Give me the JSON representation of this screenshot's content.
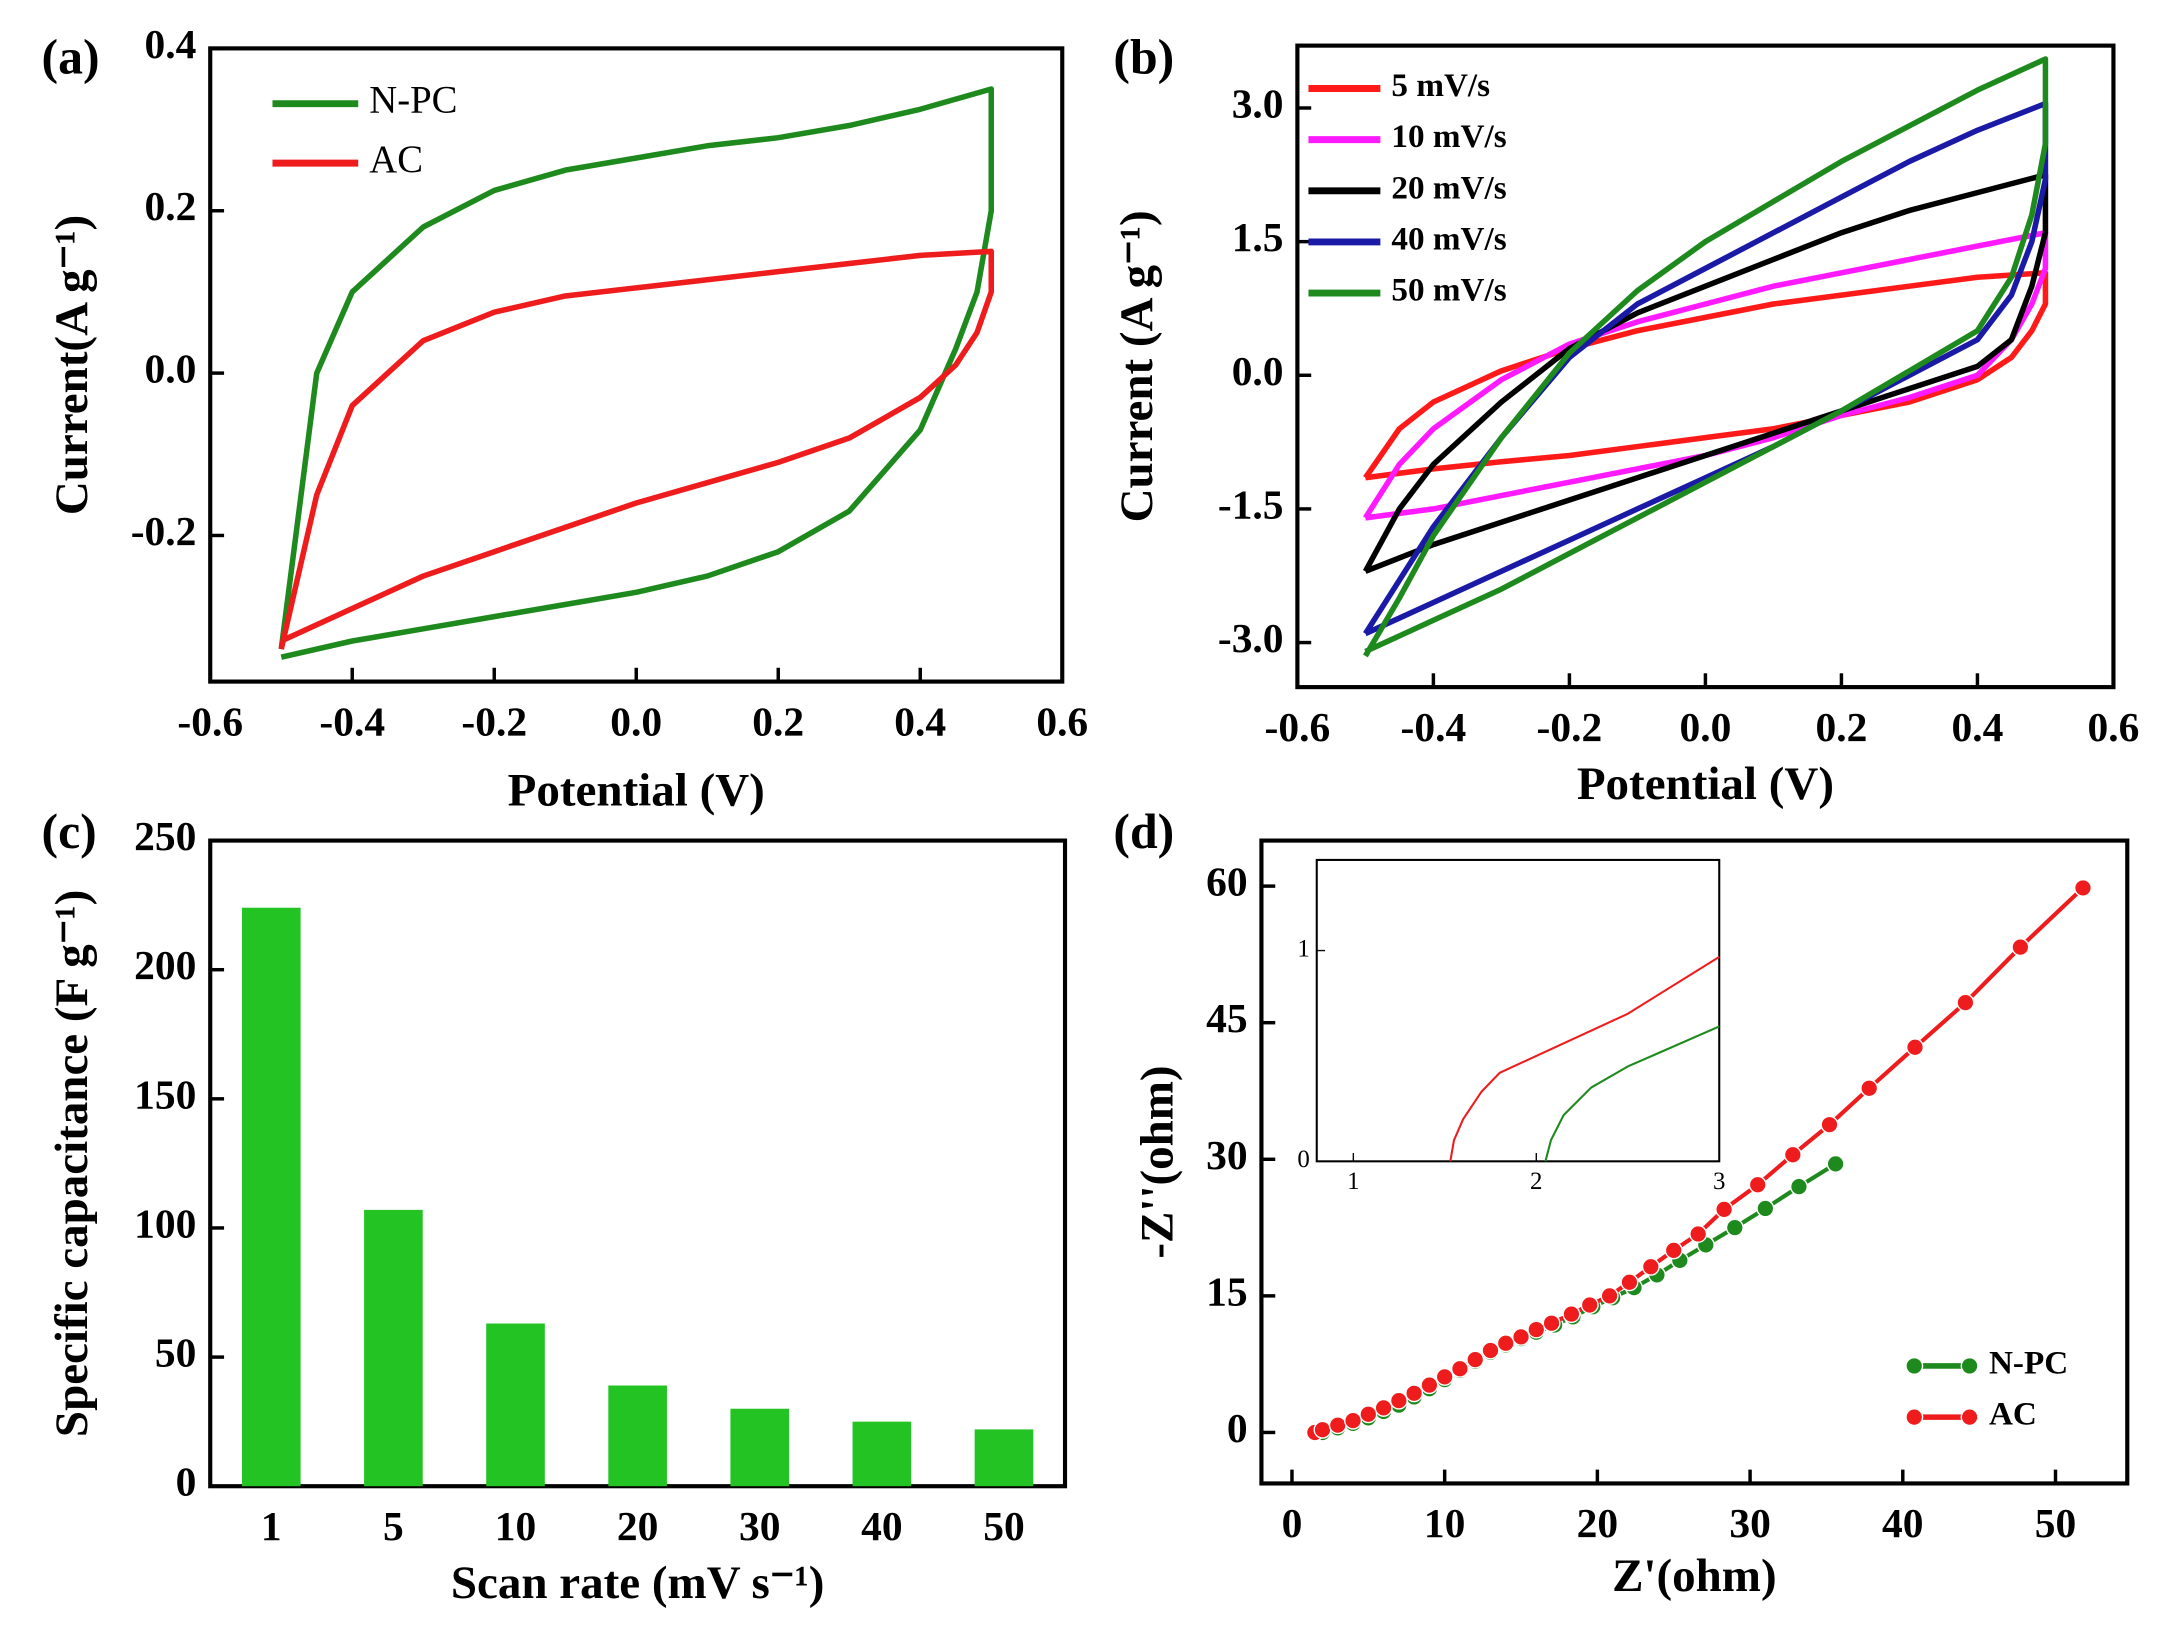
{
  "chart_data": [
    {
      "type": "line",
      "panel_label": "(a)",
      "xlabel": "Potential (V)",
      "ylabel": "Current(A g⁻¹)",
      "legend": "upper left",
      "xlim": [
        -0.6,
        0.6
      ],
      "xticks": [
        -0.6,
        -0.4,
        -0.2,
        {
          "value": 0,
          "label": "0.0"
        },
        0.2,
        0.4,
        0.6
      ],
      "ylim": [
        -0.38,
        0.4
      ],
      "yticks": [
        -0.2,
        {
          "value": 0,
          "label": "0.0"
        },
        0.2,
        0.4
      ],
      "x": [
        -0.5,
        -0.45,
        -0.4,
        -0.3,
        -0.2,
        -0.1,
        0,
        0.1,
        0.2,
        0.3,
        0.4,
        0.5,
        0.5,
        0.48,
        0.45,
        0.4,
        0.3,
        0.2,
        0.1,
        0,
        -0.1,
        -0.2,
        -0.3,
        -0.4,
        -0.5
      ],
      "series": [
        {
          "name": "N-PC",
          "color": "#1e8a1e",
          "values": [
            -0.34,
            0.0,
            0.1,
            0.18,
            0.225,
            0.25,
            0.265,
            0.28,
            0.29,
            0.305,
            0.325,
            0.35,
            0.2,
            0.1,
            0.03,
            -0.07,
            -0.17,
            -0.22,
            -0.25,
            -0.27,
            -0.285,
            -0.3,
            -0.315,
            -0.33,
            -0.35
          ]
        },
        {
          "name": "AC",
          "color": "#ee1c1c",
          "values": [
            -0.34,
            -0.15,
            -0.04,
            0.04,
            0.075,
            0.095,
            0.105,
            0.115,
            0.125,
            0.135,
            0.145,
            0.15,
            0.1,
            0.05,
            0.01,
            -0.03,
            -0.08,
            -0.11,
            -0.135,
            -0.16,
            -0.19,
            -0.22,
            -0.25,
            -0.29,
            -0.33
          ]
        }
      ]
    },
    {
      "type": "line",
      "panel_label": "(b)",
      "xlabel": "Potential (V)",
      "ylabel": "Current (A g⁻¹)",
      "legend": "upper left",
      "xlim": [
        -0.6,
        0.6
      ],
      "xticks": [
        -0.6,
        -0.4,
        -0.2,
        {
          "value": 0,
          "label": "0.0"
        },
        0.2,
        0.4,
        0.6
      ],
      "ylim": [
        -3.5,
        3.7
      ],
      "yticks": [
        {
          "value": -3,
          "label": "-3.0"
        },
        -1.5,
        {
          "value": 0,
          "label": "0.0"
        },
        1.5,
        {
          "value": 3,
          "label": "3.0"
        }
      ],
      "x": [
        -0.5,
        -0.45,
        -0.4,
        -0.3,
        -0.2,
        -0.1,
        0,
        0.1,
        0.2,
        0.3,
        0.4,
        0.5,
        0.5,
        0.48,
        0.45,
        0.4,
        0.3,
        0.2,
        0.1,
        0,
        -0.1,
        -0.2,
        -0.3,
        -0.4,
        -0.5
      ],
      "series": [
        {
          "name": "5 mV/s",
          "color": "#ff1a1a",
          "values": [
            -1.15,
            -0.6,
            -0.3,
            0.05,
            0.3,
            0.5,
            0.65,
            0.8,
            0.9,
            1.0,
            1.1,
            1.15,
            0.8,
            0.5,
            0.2,
            -0.05,
            -0.3,
            -0.45,
            -0.6,
            -0.7,
            -0.8,
            -0.9,
            -0.97,
            -1.05,
            -1.15
          ]
        },
        {
          "name": "10 mV/s",
          "color": "#ff1aff",
          "values": [
            -1.6,
            -1.0,
            -0.6,
            -0.05,
            0.35,
            0.6,
            0.8,
            1.0,
            1.15,
            1.3,
            1.45,
            1.6,
            1.2,
            0.8,
            0.4,
            0.0,
            -0.25,
            -0.45,
            -0.7,
            -0.9,
            -1.05,
            -1.2,
            -1.35,
            -1.5,
            -1.6
          ]
        },
        {
          "name": "20 mV/s",
          "color": "#000000",
          "values": [
            -2.2,
            -1.5,
            -1.0,
            -0.3,
            0.3,
            0.7,
            1.0,
            1.3,
            1.6,
            1.85,
            2.05,
            2.25,
            1.6,
            1.0,
            0.4,
            0.1,
            -0.15,
            -0.4,
            -0.65,
            -0.9,
            -1.15,
            -1.4,
            -1.65,
            -1.9,
            -2.2
          ]
        },
        {
          "name": "40 mV/s",
          "color": "#1a1aa6",
          "values": [
            -2.9,
            -2.3,
            -1.7,
            -0.7,
            0.2,
            0.8,
            1.2,
            1.6,
            2.0,
            2.4,
            2.75,
            3.05,
            2.2,
            1.5,
            0.9,
            0.4,
            0.0,
            -0.4,
            -0.8,
            -1.15,
            -1.5,
            -1.85,
            -2.2,
            -2.55,
            -2.9
          ]
        },
        {
          "name": "50 mV/s",
          "color": "#1e8a1e",
          "values": [
            -3.15,
            -2.5,
            -1.8,
            -0.7,
            0.25,
            0.95,
            1.5,
            1.95,
            2.4,
            2.8,
            3.2,
            3.55,
            2.6,
            1.8,
            1.1,
            0.5,
            0.05,
            -0.4,
            -0.8,
            -1.2,
            -1.6,
            -2.0,
            -2.4,
            -2.75,
            -3.1
          ]
        }
      ]
    },
    {
      "type": "bar",
      "panel_label": "(c)",
      "xlabel": "Scan rate (mV s⁻¹)",
      "ylabel": "Specific capacitance (F g⁻¹)",
      "categories": [
        "1",
        "5",
        "10",
        "20",
        "30",
        "40",
        "50"
      ],
      "values": [
        224,
        107,
        63,
        39,
        30,
        25,
        22
      ],
      "color": "#22c322",
      "ylim": [
        0,
        250
      ],
      "yticks": [
        0,
        50,
        100,
        150,
        200,
        250
      ]
    },
    {
      "type": "line",
      "markers": true,
      "panel_label": "(d)",
      "xlabel": "Z'(ohm)",
      "ylabel": "-Z''(ohm)",
      "legend": "lower right",
      "xlim": [
        -2,
        54.7
      ],
      "xticks": [
        0,
        10,
        20,
        30,
        40,
        50
      ],
      "ylim": [
        -5.6,
        65
      ],
      "yticks": [
        0,
        15,
        30,
        45,
        60
      ],
      "series": [
        {
          "name": "N-PC",
          "color": "#1e8a1e",
          "x": [
            2,
            3,
            4,
            5,
            6,
            7,
            8,
            9,
            10,
            11,
            12,
            13,
            14,
            15,
            16,
            17.2,
            18.4,
            19.7,
            21,
            22.4,
            23.9,
            25.4,
            27.1,
            29,
            31,
            33.2,
            35.6
          ],
          "values": [
            0,
            0.5,
            1,
            1.6,
            2.3,
            3,
            3.9,
            4.8,
            5.8,
            6.8,
            7.8,
            8.8,
            9.6,
            10.3,
            11,
            11.8,
            12.7,
            13.8,
            14.8,
            15.9,
            17.3,
            18.9,
            20.6,
            22.5,
            24.6,
            27,
            29.5
          ]
        },
        {
          "name": "AC",
          "color": "#ee1c1c",
          "x": [
            1.5,
            2,
            3,
            4,
            5,
            6,
            7,
            8,
            9,
            10,
            11,
            12,
            13,
            14,
            15,
            16,
            17,
            18.3,
            19.5,
            20.8,
            22.1,
            23.5,
            25,
            26.6,
            28.3,
            30.5,
            32.8,
            35.2,
            37.8,
            40.8,
            44.1,
            47.7,
            51.8
          ],
          "values": [
            0,
            0.3,
            0.8,
            1.3,
            2,
            2.7,
            3.5,
            4.3,
            5.2,
            6.1,
            7,
            8,
            9,
            9.8,
            10.5,
            11.3,
            12,
            13,
            14,
            15,
            16.5,
            18.2,
            20,
            21.8,
            24.5,
            27.2,
            30.5,
            33.8,
            37.8,
            42.3,
            47.2,
            53.3,
            59.8
          ]
        }
      ]
    },
    {
      "type": "line",
      "inset": true,
      "xlim": [
        0.8,
        3
      ],
      "xticks": [
        1,
        2,
        3
      ],
      "ylim": [
        0,
        1.43
      ],
      "yticks": [
        0,
        1
      ],
      "series": [
        {
          "color": "#ee1c1c",
          "x": [
            1.53,
            1.55,
            1.6,
            1.7,
            1.8,
            2,
            2.5,
            3
          ],
          "values": [
            0,
            0.1,
            0.2,
            0.33,
            0.42,
            0.5,
            0.7,
            0.97
          ]
        },
        {
          "color": "#1e8a1e",
          "x": [
            2.05,
            2.08,
            2.15,
            2.3,
            2.5,
            3
          ],
          "values": [
            0,
            0.1,
            0.22,
            0.35,
            0.45,
            0.64
          ]
        }
      ]
    }
  ]
}
